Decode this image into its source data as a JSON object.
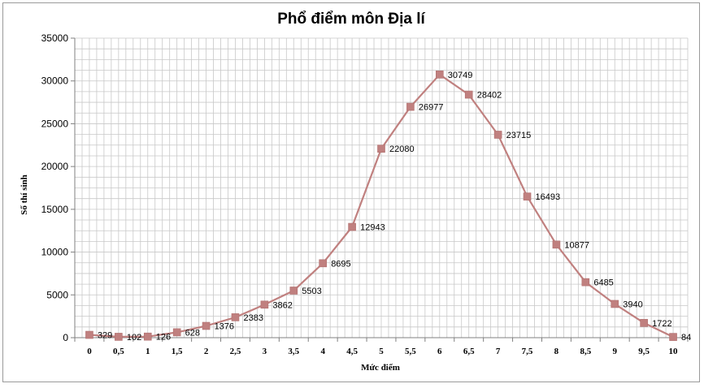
{
  "chart_data": {
    "type": "line",
    "title": "Phổ điểm môn Địa lí",
    "xlabel": "Mức điểm",
    "ylabel": "Số thí sinh",
    "categories": [
      "0",
      "0,5",
      "1",
      "1,5",
      "2",
      "2,5",
      "3",
      "3,5",
      "4",
      "4,5",
      "5",
      "5,5",
      "6",
      "6,5",
      "7",
      "7,5",
      "8",
      "8,5",
      "9",
      "9,5",
      "10"
    ],
    "series": [
      {
        "values": [
          329,
          102,
          126,
          628,
          1376,
          2383,
          3862,
          5503,
          8695,
          12943,
          22080,
          26977,
          30749,
          28402,
          23715,
          16493,
          10877,
          6485,
          3940,
          1722,
          84
        ]
      }
    ],
    "value_labels": [
      "329",
      "102",
      "126",
      "628",
      "1376",
      "2383",
      "3862",
      "5503",
      "8695",
      "12943",
      "22080",
      "26977",
      "30749",
      "28402",
      "23715",
      "16493",
      "10877",
      "6485",
      "3940",
      "1722",
      "84"
    ],
    "ylim": [
      0,
      35000
    ],
    "yticks": [
      0,
      5000,
      10000,
      15000,
      20000,
      25000,
      30000,
      35000
    ],
    "ytick_labels": [
      "0",
      "5000",
      "10000",
      "15000",
      "20000",
      "25000",
      "30000",
      "35000"
    ],
    "grid": true,
    "legend": "none",
    "colors": {
      "line": "#c0807f",
      "marker": "#c0807f",
      "grid": "#c8c8c8",
      "frame": "#9a9a9a"
    }
  }
}
